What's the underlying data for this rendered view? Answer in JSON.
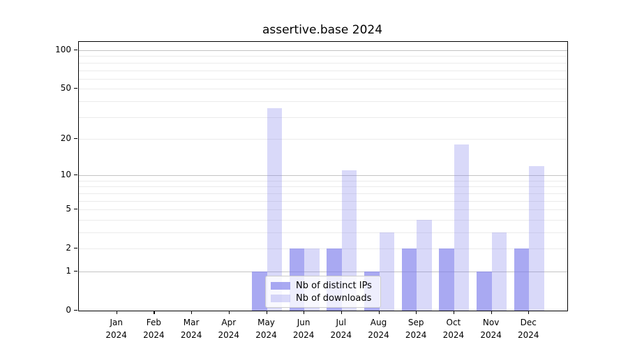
{
  "title": "assertive.base 2024",
  "chart_data": {
    "type": "bar",
    "title": "assertive.base 2024",
    "categories": [
      {
        "month": "Jan",
        "year": "2024"
      },
      {
        "month": "Feb",
        "year": "2024"
      },
      {
        "month": "Mar",
        "year": "2024"
      },
      {
        "month": "Apr",
        "year": "2024"
      },
      {
        "month": "May",
        "year": "2024"
      },
      {
        "month": "Jun",
        "year": "2024"
      },
      {
        "month": "Jul",
        "year": "2024"
      },
      {
        "month": "Aug",
        "year": "2024"
      },
      {
        "month": "Sep",
        "year": "2024"
      },
      {
        "month": "Oct",
        "year": "2024"
      },
      {
        "month": "Nov",
        "year": "2024"
      },
      {
        "month": "Dec",
        "year": "2024"
      }
    ],
    "series": [
      {
        "name": "Nb of distinct IPs",
        "color": "#7c7ceb",
        "alpha": 0.66,
        "values": [
          0,
          0,
          0,
          0,
          1,
          2,
          2,
          1,
          2,
          2,
          1,
          2
        ]
      },
      {
        "name": "Nb of downloads",
        "color": "#7c7ceb",
        "alpha": 0.29,
        "values": [
          0,
          0,
          0,
          0,
          35,
          2,
          11,
          3,
          4,
          18,
          3,
          12
        ]
      }
    ],
    "xlabel": "",
    "ylabel": "",
    "yscale": "log1p",
    "ylim": [
      0,
      100
    ],
    "yticks": [
      100,
      50,
      20,
      10,
      5,
      2,
      1,
      0
    ],
    "grid_major_values": [
      1,
      10,
      100
    ],
    "grid_minor_values": [
      2,
      3,
      4,
      5,
      6,
      7,
      8,
      9,
      20,
      30,
      40,
      50,
      60,
      70,
      80,
      90
    ],
    "grid": "on",
    "legend_position": "lower center"
  }
}
